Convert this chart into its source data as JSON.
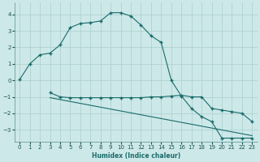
{
  "xlabel": "Humidex (Indice chaleur)",
  "background_color": "#cde8e8",
  "grid_color": "#aacece",
  "line_color": "#1a6b6b",
  "xlim": [
    -0.5,
    23.5
  ],
  "ylim": [
    -3.7,
    4.7
  ],
  "yticks": [
    -3,
    -2,
    -1,
    0,
    1,
    2,
    3,
    4
  ],
  "xticks": [
    0,
    1,
    2,
    3,
    4,
    5,
    6,
    7,
    8,
    9,
    10,
    11,
    12,
    13,
    14,
    15,
    16,
    17,
    18,
    19,
    20,
    21,
    22,
    23
  ],
  "curve1_x": [
    0,
    1,
    2,
    3,
    4,
    5,
    6,
    7,
    8,
    9,
    10,
    11,
    12,
    13,
    14,
    15,
    16,
    17,
    18,
    19,
    20,
    21,
    22,
    23
  ],
  "curve1_y": [
    0.05,
    1.0,
    1.55,
    1.65,
    2.15,
    3.2,
    3.45,
    3.5,
    3.6,
    4.1,
    4.1,
    3.9,
    3.35,
    2.7,
    2.3,
    0.0,
    -0.95,
    -1.7,
    -2.2,
    -2.5,
    -3.5,
    -3.5,
    -3.5,
    -3.5
  ],
  "curve2_x": [
    3,
    4,
    5,
    6,
    7,
    8,
    9,
    10,
    11,
    12,
    13,
    14,
    15,
    16,
    17,
    18,
    19,
    20,
    21,
    22,
    23
  ],
  "curve2_y": [
    -0.75,
    -1.0,
    -1.05,
    -1.05,
    -1.05,
    -1.05,
    -1.05,
    -1.05,
    -1.05,
    -1.05,
    -1.0,
    -1.0,
    -0.95,
    -0.9,
    -1.0,
    -1.0,
    -1.7,
    -1.8,
    -1.9,
    -2.0,
    -2.5
  ],
  "curve3_x": [
    3,
    23
  ],
  "curve3_y": [
    -1.05,
    -3.35
  ]
}
